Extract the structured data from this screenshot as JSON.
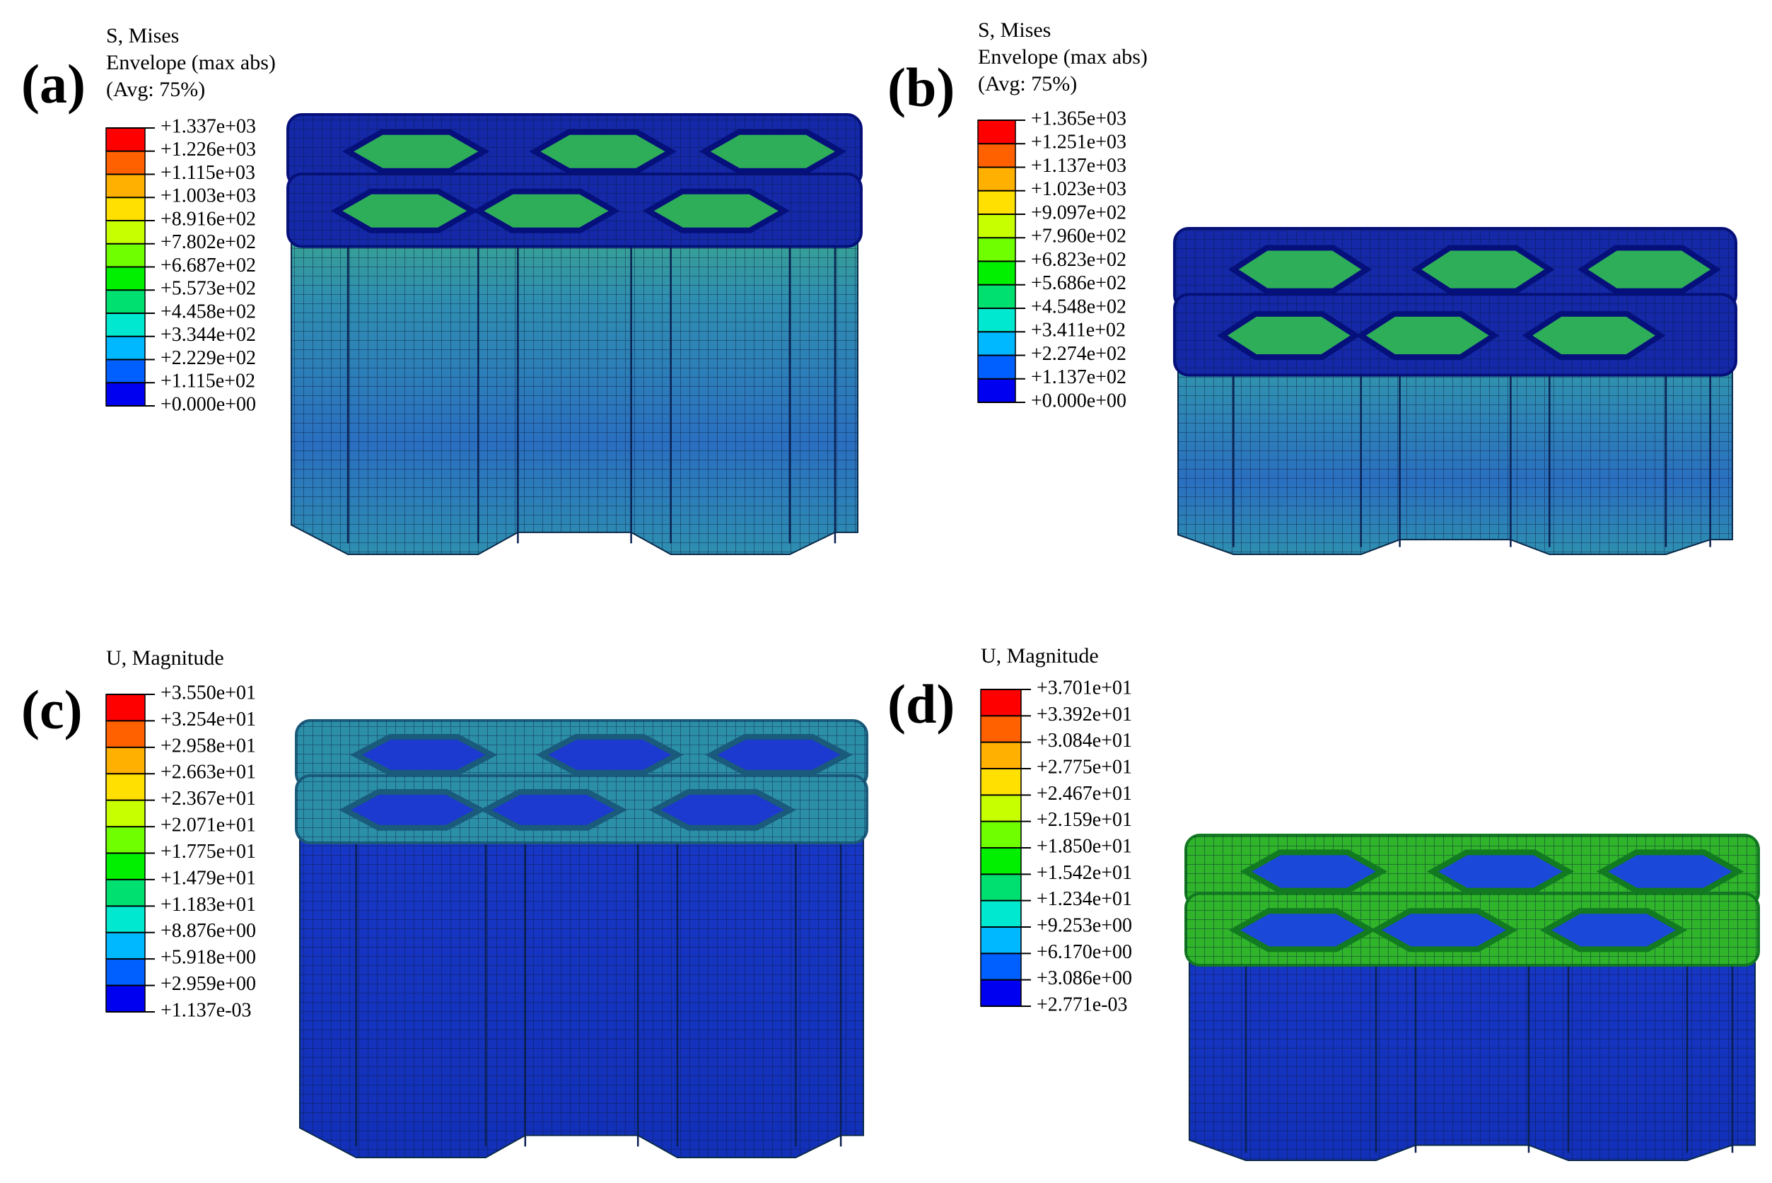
{
  "panels": [
    {
      "label": "(a)",
      "legend_title": [
        "S, Mises",
        "Envelope (max abs)",
        "(Avg: 75%)"
      ],
      "legend_values": [
        "+1.337e+03",
        "+1.226e+03",
        "+1.115e+03",
        "+1.003e+03",
        "+8.916e+02",
        "+7.802e+02",
        "+6.687e+02",
        "+5.573e+02",
        "+4.458e+02",
        "+3.344e+02",
        "+2.229e+02",
        "+1.115e+02",
        "+0.000e+00"
      ]
    },
    {
      "label": "(b)",
      "legend_title": [
        "S, Mises",
        "Envelope (max abs)",
        "(Avg: 75%)"
      ],
      "legend_values": [
        "+1.365e+03",
        "+1.251e+03",
        "+1.137e+03",
        "+1.023e+03",
        "+9.097e+02",
        "+7.960e+02",
        "+6.823e+02",
        "+5.686e+02",
        "+4.548e+02",
        "+3.411e+02",
        "+2.274e+02",
        "+1.137e+02",
        "+0.000e+00"
      ]
    },
    {
      "label": "(c)",
      "legend_title": [
        "U, Magnitude"
      ],
      "legend_values": [
        "+3.550e+01",
        "+3.254e+01",
        "+2.958e+01",
        "+2.663e+01",
        "+2.367e+01",
        "+2.071e+01",
        "+1.775e+01",
        "+1.479e+01",
        "+1.183e+01",
        "+8.876e+00",
        "+5.918e+00",
        "+2.959e+00",
        "+1.137e-03"
      ]
    },
    {
      "label": "(d)",
      "legend_title": [
        "U, Magnitude"
      ],
      "legend_values": [
        "+3.701e+01",
        "+3.392e+01",
        "+3.084e+01",
        "+2.775e+01",
        "+2.467e+01",
        "+2.159e+01",
        "+1.850e+01",
        "+1.542e+01",
        "+1.234e+01",
        "+9.253e+00",
        "+6.170e+00",
        "+3.086e+00",
        "+2.771e-03"
      ]
    }
  ]
}
